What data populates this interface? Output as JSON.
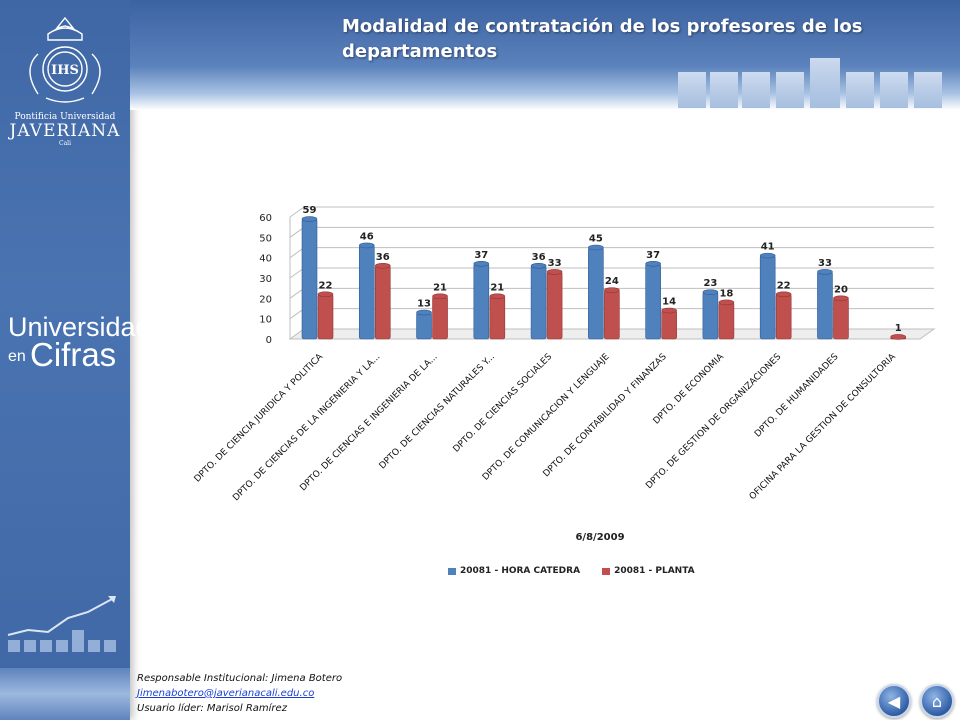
{
  "page": {
    "title": "Modalidad de contratación de los profesores de los departamentos"
  },
  "sidebar": {
    "logo_line1": "Pontificia Universidad",
    "logo_line2": "JAVERIANA",
    "logo_line3": "Cali",
    "brand_line1": "Universidad",
    "brand_line2": "en",
    "brand_line3": "Cifras"
  },
  "footer": {
    "responsable": "Responsable Institucional: Jimena Botero",
    "email": "Jimenabotero@javerianacali.edu.co",
    "usuario": "Usuario líder: Marisol Ramírez"
  },
  "nav": {
    "back_icon": "back-arrow-icon",
    "home_icon": "home-icon"
  },
  "chart_data": {
    "type": "bar",
    "xlabel": "6/8/2009",
    "ylim": [
      0,
      60
    ],
    "yticks": [
      0,
      10,
      20,
      30,
      40,
      50,
      60
    ],
    "categories": [
      "DPTO. DE CIENCIA JURIDICA Y POLITICA",
      "DPTO. DE CIENCIAS DE LA INGENIERIA Y LA...",
      "DPTO. DE CIENCIAS E INGENIERIA DE LA...",
      "DPTO. DE CIENCIAS NATURALES Y...",
      "DPTO. DE CIENCIAS SOCIALES",
      "DPTO. DE COMUNICACION Y LENGUAJE",
      "DPTO. DE CONTABILIDAD Y FINANZAS",
      "DPTO. DE ECONOMIA",
      "DPTO. DE GESTION DE ORGANIZACIONES",
      "DPTO. DE HUMANIDADES",
      "OFICINA PARA LA GESTION DE CONSULTORIA"
    ],
    "series": [
      {
        "name": "20081 - HORA CATEDRA",
        "color": "#4f81bd",
        "values": [
          59,
          46,
          13,
          37,
          36,
          45,
          37,
          23,
          41,
          33,
          null
        ]
      },
      {
        "name": "20081 - PLANTA",
        "color": "#c0504d",
        "values": [
          22,
          36,
          21,
          21,
          33,
          24,
          14,
          18,
          22,
          20,
          1
        ]
      }
    ],
    "legend_position": "bottom",
    "grid": true
  }
}
